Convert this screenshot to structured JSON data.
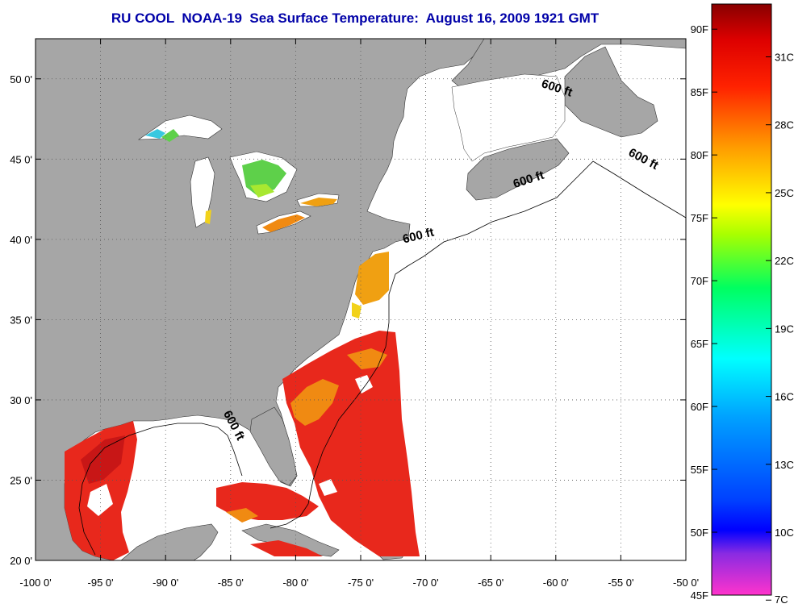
{
  "title": "RU COOL  NOAA-19  Sea Surface Temperature:  August 16, 2009 1921 GMT",
  "map": {
    "lon_range": [
      -100,
      -50
    ],
    "lat_range": [
      20,
      52.5
    ],
    "lon_ticks": [
      -100,
      -95,
      -90,
      -85,
      -80,
      -75,
      -70,
      -65,
      -60,
      -55,
      -50
    ],
    "lat_ticks": [
      20,
      25,
      30,
      35,
      40,
      45,
      50
    ],
    "lon_tick_labels": [
      "-100 0'",
      "-95 0'",
      "-90 0'",
      "-85 0'",
      "-80 0'",
      "-75 0'",
      "-70 0'",
      "-65 0'",
      "-60 0'",
      "-55 0'",
      "-50 0'"
    ],
    "lat_tick_labels": [
      "20 0'",
      "25 0'",
      "30 0'",
      "35 0'",
      "40 0'",
      "45 0'",
      "50 0'"
    ],
    "contour_labels": [
      {
        "text": "600 ft",
        "lon": -60.0,
        "lat": 49.2,
        "angle": 18
      },
      {
        "text": "600 ft",
        "lon": -53.4,
        "lat": 44.8,
        "angle": 28
      },
      {
        "text": "600 ft",
        "lon": -62.0,
        "lat": 43.5,
        "angle": -18
      },
      {
        "text": "600 ft",
        "lon": -70.5,
        "lat": 40.0,
        "angle": -14
      },
      {
        "text": "600 ft",
        "lon": -85.0,
        "lat": 28.3,
        "angle": 62
      }
    ]
  },
  "colorbar": {
    "fahrenheit": [
      {
        "label": "90F",
        "value": 90
      },
      {
        "label": "85F",
        "value": 85
      },
      {
        "label": "80F",
        "value": 80
      },
      {
        "label": "75F",
        "value": 75
      },
      {
        "label": "70F",
        "value": 70
      },
      {
        "label": "65F",
        "value": 65
      },
      {
        "label": "60F",
        "value": 60
      },
      {
        "label": "55F",
        "value": 55
      },
      {
        "label": "50F",
        "value": 50
      },
      {
        "label": "45F",
        "value": 45
      }
    ],
    "celsius": [
      {
        "label": "31C",
        "value": 31
      },
      {
        "label": "28C",
        "value": 28
      },
      {
        "label": "25C",
        "value": 25
      },
      {
        "label": "22C",
        "value": 22
      },
      {
        "label": "19C",
        "value": 19
      },
      {
        "label": "16C",
        "value": 16
      },
      {
        "label": "13C",
        "value": 13
      },
      {
        "label": "10C",
        "value": 10
      },
      {
        "label": "7C",
        "value": 7
      }
    ],
    "range_f": [
      45,
      92
    ],
    "colors": {
      "land": "#a6a6a6",
      "ocean": "#ffffff",
      "warm": "#e8281c",
      "hot": "#c81616",
      "orange": "#f08a12",
      "yellow": "#f2d21a",
      "green": "#5ed04a",
      "cyan": "#38c8e0"
    }
  }
}
